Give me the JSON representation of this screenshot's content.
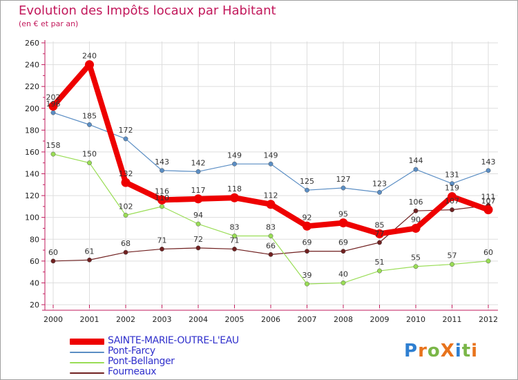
{
  "title": "Evolution des Impôts locaux par Habitant",
  "subtitle": "(en € et par an)",
  "logo": {
    "text": "ProXiti",
    "letters": [
      "P",
      "r",
      "o",
      "X",
      "i",
      "t",
      "i"
    ],
    "colors": [
      "#2e7fd1",
      "#e8731c",
      "#7ab648",
      "#e8731c",
      "#2e7fd1",
      "#7ab648",
      "#e8731c"
    ]
  },
  "chart_data": {
    "type": "line",
    "title": "Evolution des Impôts locaux par Habitant",
    "subtitle": "(en € et par an)",
    "xlabel": "",
    "ylabel": "",
    "x": [
      "2000",
      "2001",
      "2002",
      "2003",
      "2004",
      "2005",
      "2006",
      "2007",
      "2008",
      "2009",
      "2010",
      "2011",
      "2012"
    ],
    "ylim": [
      20,
      260
    ],
    "yticks": [
      20,
      40,
      60,
      80,
      100,
      120,
      140,
      160,
      180,
      200,
      220,
      240,
      260
    ],
    "grid": true,
    "legend": "bottom-left",
    "series": [
      {
        "name": "SAINTE-MARIE-OUTRE-L'EAU",
        "color": "#ee0000",
        "values": [
          202,
          240,
          132,
          116,
          117,
          118,
          112,
          92,
          95,
          85,
          90,
          119,
          107
        ]
      },
      {
        "name": "Pont-Farcy",
        "color": "#5b8ec4",
        "values": [
          196,
          185,
          172,
          143,
          142,
          149,
          149,
          125,
          127,
          123,
          144,
          131,
          143
        ]
      },
      {
        "name": "Pont-Bellanger",
        "color": "#99dd55",
        "values": [
          158,
          150,
          102,
          110,
          94,
          83,
          83,
          39,
          40,
          51,
          55,
          57,
          60
        ]
      },
      {
        "name": "Fourneaux",
        "color": "#702020",
        "values": [
          60,
          61,
          68,
          71,
          72,
          71,
          66,
          69,
          69,
          77,
          106,
          107,
          111
        ]
      }
    ]
  }
}
